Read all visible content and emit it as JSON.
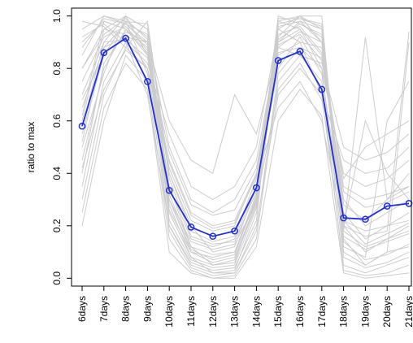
{
  "chart_data": {
    "type": "line",
    "title": "",
    "xlabel": "",
    "ylabel": "ratio to max",
    "categories": [
      "6days",
      "7days",
      "8days",
      "9days",
      "10days",
      "11days",
      "12days",
      "13days",
      "14days",
      "15days",
      "16days",
      "17days",
      "18days",
      "19days",
      "20days",
      "21days"
    ],
    "ylim": [
      -0.03,
      1.03
    ],
    "yticks": [
      "0.0",
      "0.2",
      "0.4",
      "0.6",
      "0.8",
      "1.0"
    ],
    "grid": false,
    "legend": "none",
    "colors": {
      "highlight": "#1f2fe0",
      "background_lines": "#cccccc",
      "axis": "#000000"
    },
    "highlight_series": {
      "values": [
        0.58,
        0.86,
        0.915,
        0.75,
        0.335,
        0.195,
        0.16,
        0.18,
        0.345,
        0.83,
        0.865,
        0.72,
        0.23,
        0.225,
        0.275,
        0.285
      ]
    },
    "background_series": [
      [
        0.95,
        1.0,
        0.97,
        0.9,
        0.35,
        0.12,
        0.05,
        0.06,
        0.3,
        0.95,
        1.0,
        0.9,
        0.2,
        0.1,
        0.15,
        0.2
      ],
      [
        0.8,
        0.95,
        1.0,
        0.85,
        0.25,
        0.08,
        0.02,
        0.03,
        0.25,
        0.9,
        0.98,
        0.95,
        0.15,
        0.05,
        0.1,
        0.12
      ],
      [
        0.9,
        0.98,
        0.95,
        0.88,
        0.4,
        0.2,
        0.1,
        0.12,
        0.35,
        0.98,
        0.95,
        0.85,
        0.3,
        0.2,
        0.25,
        0.3
      ],
      [
        0.35,
        0.75,
        0.9,
        0.7,
        0.2,
        0.05,
        0.02,
        0.02,
        0.2,
        0.7,
        0.8,
        0.7,
        0.05,
        0.02,
        0.05,
        0.08
      ],
      [
        0.55,
        0.85,
        0.98,
        0.92,
        0.5,
        0.3,
        0.25,
        0.3,
        0.45,
        0.9,
        0.95,
        0.8,
        0.4,
        0.35,
        0.38,
        0.45
      ],
      [
        0.2,
        0.6,
        0.85,
        0.75,
        0.15,
        0.03,
        0.0,
        0.01,
        0.15,
        0.75,
        0.85,
        0.75,
        0.03,
        0.01,
        0.02,
        0.05
      ],
      [
        0.7,
        0.9,
        1.0,
        0.95,
        0.3,
        0.1,
        0.08,
        0.1,
        0.3,
        1.0,
        0.97,
        0.92,
        0.25,
        0.15,
        0.2,
        0.25
      ],
      [
        0.6,
        0.95,
        0.93,
        0.8,
        0.45,
        0.25,
        0.2,
        0.22,
        0.4,
        0.85,
        0.9,
        0.88,
        0.35,
        0.3,
        0.32,
        0.35
      ],
      [
        0.85,
        1.0,
        0.98,
        0.78,
        0.2,
        0.06,
        0.03,
        0.04,
        0.22,
        0.98,
        1.0,
        0.95,
        0.1,
        0.05,
        0.1,
        0.9
      ],
      [
        0.45,
        0.8,
        0.95,
        0.85,
        0.35,
        0.15,
        0.12,
        0.15,
        0.35,
        0.8,
        0.92,
        0.78,
        0.22,
        0.18,
        0.2,
        0.22
      ],
      [
        0.92,
        0.97,
        0.9,
        0.82,
        0.55,
        0.35,
        0.3,
        0.35,
        0.5,
        0.95,
        0.9,
        0.7,
        0.45,
        0.4,
        0.42,
        0.5
      ],
      [
        0.3,
        0.7,
        0.88,
        0.98,
        0.4,
        0.18,
        0.14,
        0.16,
        0.38,
        0.65,
        0.75,
        0.6,
        0.18,
        0.92,
        0.3,
        0.4
      ],
      [
        0.65,
        0.88,
        0.92,
        0.9,
        0.6,
        0.45,
        0.4,
        0.7,
        0.55,
        0.88,
        0.85,
        0.82,
        0.5,
        0.45,
        0.48,
        0.55
      ],
      [
        0.5,
        0.78,
        1.0,
        0.95,
        0.28,
        0.08,
        0.05,
        0.07,
        0.28,
        0.92,
        1.0,
        1.0,
        0.12,
        0.08,
        0.6,
        0.75
      ],
      [
        0.75,
        0.92,
        0.96,
        0.87,
        0.32,
        0.12,
        0.09,
        0.1,
        0.32,
        0.96,
        0.98,
        0.9,
        0.18,
        0.12,
        0.15,
        0.18
      ],
      [
        0.4,
        0.82,
        0.94,
        0.9,
        0.18,
        0.04,
        0.01,
        0.02,
        0.18,
        0.78,
        0.88,
        0.8,
        0.08,
        0.04,
        0.06,
        0.1
      ],
      [
        0.88,
        0.99,
        0.97,
        0.93,
        0.22,
        0.07,
        0.04,
        0.05,
        0.27,
        0.97,
        0.99,
        0.97,
        0.14,
        0.07,
        0.09,
        0.13
      ],
      [
        0.58,
        0.9,
        0.91,
        0.84,
        0.48,
        0.28,
        0.24,
        0.26,
        0.42,
        0.86,
        0.88,
        0.84,
        0.38,
        0.5,
        0.55,
        0.6
      ],
      [
        0.25,
        0.65,
        0.82,
        0.72,
        0.1,
        0.02,
        0.0,
        0.0,
        0.12,
        0.6,
        0.72,
        0.62,
        0.02,
        0.0,
        0.01,
        0.02
      ],
      [
        0.98,
        0.96,
        0.88,
        0.8,
        0.42,
        0.22,
        0.18,
        0.2,
        0.4,
        0.93,
        0.96,
        0.86,
        0.28,
        0.22,
        0.3,
        0.35
      ],
      [
        0.68,
        0.85,
        0.98,
        0.97,
        0.38,
        0.16,
        0.13,
        0.14,
        0.33,
        0.88,
        0.94,
        0.9,
        0.2,
        0.16,
        0.18,
        0.94
      ],
      [
        0.52,
        0.88,
        0.97,
        0.89,
        0.26,
        0.1,
        0.06,
        0.08,
        0.29,
        0.91,
        0.97,
        0.93,
        0.16,
        0.11,
        0.14,
        0.17
      ],
      [
        0.8,
        0.93,
        0.99,
        0.91,
        0.3,
        0.11,
        0.07,
        0.09,
        0.31,
        0.99,
        0.99,
        0.96,
        0.22,
        0.13,
        0.17,
        0.21
      ],
      [
        0.42,
        0.72,
        0.87,
        0.8,
        0.3,
        0.14,
        0.11,
        0.13,
        0.29,
        0.72,
        0.82,
        0.68,
        0.2,
        0.6,
        0.4,
        0.3
      ],
      [
        0.62,
        0.98,
        0.95,
        0.86,
        0.44,
        0.24,
        0.19,
        0.21,
        0.39,
        0.89,
        0.93,
        0.83,
        0.33,
        0.27,
        0.29,
        0.33
      ]
    ]
  }
}
